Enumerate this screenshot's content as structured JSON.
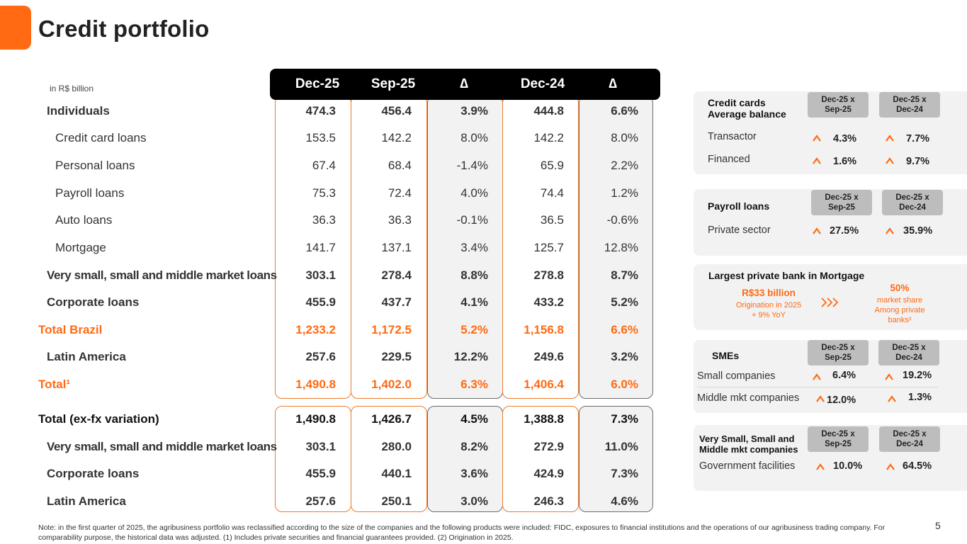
{
  "header": {
    "title": "Credit portfolio",
    "unit_note": "in R$ billion"
  },
  "table": {
    "columns": [
      "Dec-25",
      "Sep-25",
      "∆",
      "Dec-24",
      "∆"
    ],
    "rows": [
      {
        "label": "Individuals",
        "values": [
          "474.3",
          "456.4",
          "3.9%",
          "444.8",
          "6.6%"
        ]
      },
      {
        "label": "Credit card loans",
        "values": [
          "153.5",
          "142.2",
          "8.0%",
          "142.2",
          "8.0%"
        ]
      },
      {
        "label": "Personal loans",
        "values": [
          "67.4",
          "68.4",
          "-1.4%",
          "65.9",
          "2.2%"
        ]
      },
      {
        "label": "Payroll loans",
        "values": [
          "75.3",
          "72.4",
          "4.0%",
          "74.4",
          "1.2%"
        ]
      },
      {
        "label": "Auto loans",
        "values": [
          "36.3",
          "36.3",
          "-0.1%",
          "36.5",
          "-0.6%"
        ]
      },
      {
        "label": "Mortgage",
        "values": [
          "141.7",
          "137.1",
          "3.4%",
          "125.7",
          "12.8%"
        ]
      },
      {
        "label": "Very small, small and middle market loans",
        "values": [
          "303.1",
          "278.4",
          "8.8%",
          "278.8",
          "8.7%"
        ]
      },
      {
        "label": "Corporate loans",
        "values": [
          "455.9",
          "437.7",
          "4.1%",
          "433.2",
          "5.2%"
        ]
      },
      {
        "label": "Total Brazil",
        "values": [
          "1,233.2",
          "1,172.5",
          "5.2%",
          "1,156.8",
          "6.6%"
        ]
      },
      {
        "label": "Latin America",
        "values": [
          "257.6",
          "229.5",
          "12.2%",
          "249.6",
          "3.2%"
        ]
      },
      {
        "label": "Total¹",
        "values": [
          "1,490.8",
          "1,402.0",
          "6.3%",
          "1,406.4",
          "6.0%"
        ]
      }
    ],
    "fx_rows": [
      {
        "label": "Total (ex-fx variation)",
        "values": [
          "1,490.8",
          "1,426.7",
          "4.5%",
          "1,388.8",
          "7.3%"
        ]
      },
      {
        "label": "Very small, small and middle market loans",
        "values": [
          "303.1",
          "280.0",
          "8.2%",
          "272.9",
          "11.0%"
        ]
      },
      {
        "label": "Corporate loans",
        "values": [
          "455.9",
          "440.1",
          "3.6%",
          "424.9",
          "7.3%"
        ]
      },
      {
        "label": "Latin America",
        "values": [
          "257.6",
          "250.1",
          "3.0%",
          "246.3",
          "4.6%"
        ]
      }
    ]
  },
  "cards": {
    "credit_cards": {
      "title_line1": "Credit cards",
      "title_line2": "Average balance",
      "pill1_line1": "Dec-25 x",
      "pill1_line2": "Sep-25",
      "pill2_line1": "Dec-25 x",
      "pill2_line2": "Dec-24",
      "rows": [
        {
          "label": "Transactor",
          "a": "4.3%",
          "b": "7.7%"
        },
        {
          "label": "Financed",
          "a": "1.6%",
          "b": "9.7%"
        }
      ]
    },
    "payroll": {
      "title": "Payroll loans",
      "pill1_line1": "Dec-25 x",
      "pill1_line2": "Sep-25",
      "pill2_line1": "Dec-25 x",
      "pill2_line2": "Dec-24",
      "rows": [
        {
          "label": "Private sector",
          "a": "27.5%",
          "b": "35.9%"
        }
      ]
    },
    "mortgage": {
      "title": "Largest private bank in Mortgage",
      "left_big": "R$33 billion",
      "left_line1": "Origination in 2025",
      "left_line2": "+ 9% YoY",
      "right_big": "50%",
      "right_line1": "market share",
      "right_line2": "Among private",
      "right_line3": "banks²"
    },
    "smes": {
      "title": "SMEs",
      "pill1_line1": "Dec-25 x",
      "pill1_line2": "Sep-25",
      "pill2_line1": "Dec-25 x",
      "pill2_line2": "Dec-24",
      "rows": [
        {
          "label": "Small companies",
          "a": "6.4%",
          "b": "19.2%"
        },
        {
          "label": "Middle mkt companies",
          "a": "12.0%",
          "b": "1.3%"
        }
      ]
    },
    "vsm": {
      "title_line1": "Very Small, Small and",
      "title_line2": "Middle mkt companies",
      "pill1_line1": "Dec-25 x",
      "pill1_line2": "Sep-25",
      "pill2_line1": "Dec-25 x",
      "pill2_line2": "Dec-24",
      "rows": [
        {
          "label": "Government facilities",
          "a": "10.0%",
          "b": "64.5%"
        }
      ]
    }
  },
  "footer": {
    "note": "Note: in the first quarter of 2025, the agribusiness portfolio was reclassified according to the size of the companies and the following products were included: FIDC, exposures to financial institutions and the operations of our agribusiness trading company. For comparability purpose, the historical data was adjusted. (1) Includes private securities and financial guarantees provided. (2) Origination in 2025.",
    "page_number": "5"
  },
  "colors": {
    "accent": "#ff6a13",
    "header_bg": "#000000",
    "card_bg": "#f2f2f2",
    "pill_bg": "#bdbdbd"
  }
}
